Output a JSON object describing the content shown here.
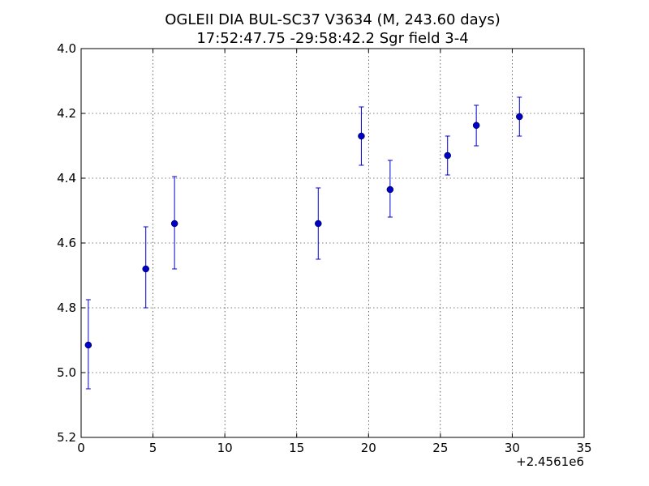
{
  "chart_data": {
    "type": "scatter",
    "title": "OGLEII DIA BUL-SC37 V3634  (M, 243.60 days)",
    "subtitle": "17:52:47.75 -29:58:42.2 Sgr field 3-4",
    "xlabel": "",
    "ylabel": "",
    "x_offset_label": "+2.4561e6",
    "xlim": [
      0,
      35
    ],
    "ylim": [
      5.2,
      4.0
    ],
    "y_inverted": true,
    "grid": true,
    "x_ticks": [
      0,
      5,
      10,
      15,
      20,
      25,
      30,
      35
    ],
    "x_tick_labels": [
      "0",
      "5",
      "10",
      "15",
      "20",
      "25",
      "30",
      "35"
    ],
    "y_ticks": [
      4.0,
      4.2,
      4.4,
      4.6,
      4.8,
      5.0,
      5.2
    ],
    "y_tick_labels": [
      "4.0",
      "4.2",
      "4.4",
      "4.6",
      "4.8",
      "5.0",
      "5.2"
    ],
    "series": [
      {
        "color": "#0000cc",
        "marker": "circle",
        "x": [
          0.5,
          4.5,
          6.5,
          16.5,
          19.5,
          21.5,
          25.5,
          27.5,
          30.5
        ],
        "y": [
          4.915,
          4.68,
          4.54,
          4.54,
          4.27,
          4.435,
          4.33,
          4.237,
          4.21
        ],
        "err_low": [
          4.775,
          4.55,
          4.395,
          4.43,
          4.18,
          4.345,
          4.27,
          4.175,
          4.15
        ],
        "err_high": [
          5.05,
          4.8,
          4.68,
          4.65,
          4.36,
          4.52,
          4.39,
          4.3,
          4.27
        ]
      }
    ]
  }
}
